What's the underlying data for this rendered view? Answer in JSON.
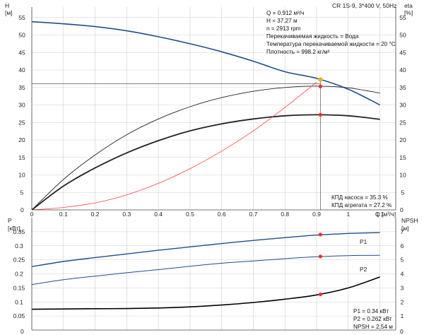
{
  "colors": {
    "head": "#1f4e8c",
    "efficiency": "#222222",
    "operating_point": "#ff2a2a",
    "duty_point": "#ffaa22",
    "npsh": "#000000",
    "system": "#ff4444",
    "grid": "#cfcfcf"
  },
  "top_chart": {
    "title": "CR 1S-9, 3*400 V, 50Hz",
    "left_axis": {
      "label": "H",
      "unit": "[м]",
      "ticks": [
        "5",
        "10",
        "15",
        "20",
        "25",
        "30",
        "35",
        "40",
        "45",
        "50",
        "55"
      ]
    },
    "right_axis": {
      "label": "eta",
      "unit": "[%]",
      "ticks": [
        "5",
        "10",
        "15",
        "20",
        "25",
        "30",
        "35",
        "40",
        "45",
        "50",
        "55"
      ]
    },
    "x_axis": {
      "label": "Q",
      "unit": "[м³/ч]",
      "ticks": [
        "0",
        "0.1",
        "0.2",
        "0.3",
        "0.4",
        "0.5",
        "0.6",
        "0.7",
        "0.8",
        "0.9",
        "1",
        "1.1"
      ]
    },
    "zero_labels": [
      "0",
      "0"
    ],
    "info": [
      "Q = 0.912 м³/ч",
      "H = 37.27 м",
      "n = 2913 rpm",
      "Перекачиваемая жидкость = Вода",
      "Температура перекачиваемой жидкости = 20 °C",
      "Плотность = 998.2 кг/м³"
    ],
    "efficiency_labels": [
      "КПД насоса = 35.3 %",
      "КПД агрегата = 27.2 %"
    ]
  },
  "bottom_chart": {
    "left_axis": {
      "label": "P",
      "unit": "[кВт]",
      "ticks": [
        "0.05",
        "0.1",
        "0.15",
        "0.2",
        "0.25",
        "0.3",
        "0.35"
      ]
    },
    "right_axis": {
      "label": "NPSH",
      "unit": "[м]",
      "ticks": [
        "1",
        "2",
        "3",
        "4",
        "5",
        "6",
        "7"
      ]
    },
    "zero_labels": [
      "0",
      "0"
    ],
    "series_labels": [
      "P1",
      "P2"
    ],
    "info": [
      "P1 = 0.34 кВт",
      "P2 = 0.262 кВт",
      "NPSH = 2.54 м"
    ]
  },
  "chart_data": [
    {
      "type": "line",
      "title": "CR 1S-9, 3*400 V, 50Hz",
      "xlabel": "Q [м³/ч]",
      "ylabel": "H [м]",
      "y2label": "eta [%]",
      "xlim": [
        0,
        1.15
      ],
      "ylim": [
        0,
        60
      ],
      "grid": true,
      "series": [
        {
          "name": "H",
          "x": [
            0,
            0.1,
            0.2,
            0.3,
            0.4,
            0.5,
            0.6,
            0.7,
            0.8,
            0.9,
            1.0,
            1.1
          ],
          "y": [
            53.8,
            53.2,
            52.4,
            51.2,
            49.5,
            47.5,
            45.2,
            42.5,
            39.5,
            37.6,
            34.5,
            30.0
          ]
        },
        {
          "name": "КПД насоса",
          "x": [
            0,
            0.1,
            0.2,
            0.3,
            0.4,
            0.5,
            0.6,
            0.7,
            0.8,
            0.9,
            1.0,
            1.1
          ],
          "y": [
            0,
            8.7,
            15.7,
            21.5,
            26.0,
            29.5,
            32.1,
            33.9,
            35.0,
            35.4,
            34.9,
            33.4
          ]
        },
        {
          "name": "КПД агрегата",
          "x": [
            0,
            0.1,
            0.2,
            0.3,
            0.4,
            0.5,
            0.6,
            0.7,
            0.8,
            0.9,
            1.0,
            1.1
          ],
          "y": [
            0,
            6.8,
            12.0,
            16.3,
            19.8,
            22.6,
            24.6,
            26.0,
            26.9,
            27.2,
            26.9,
            25.9
          ]
        },
        {
          "name": "system",
          "x": [
            0,
            0.1,
            0.2,
            0.3,
            0.4,
            0.5,
            0.6,
            0.7,
            0.8,
            0.9
          ],
          "y": [
            0,
            0.7,
            2.0,
            4.3,
            7.6,
            11.8,
            16.8,
            22.6,
            29.3,
            36.5
          ]
        }
      ],
      "points": [
        {
          "x": 0.912,
          "y": 37.27,
          "series": "H"
        },
        {
          "x": 0.912,
          "y": 35.3,
          "series": "КПД насоса"
        },
        {
          "x": 0.912,
          "y": 27.2,
          "series": "КПД агрегата"
        }
      ]
    },
    {
      "type": "line",
      "xlabel": "Q [м³/ч]",
      "ylabel": "P [кВт]",
      "y2label": "NPSH [м]",
      "xlim": [
        0,
        1.15
      ],
      "ylim": [
        0,
        0.4
      ],
      "y2lim": [
        0,
        8
      ],
      "grid": true,
      "series": [
        {
          "name": "P1",
          "x": [
            0,
            0.1,
            0.2,
            0.3,
            0.4,
            0.5,
            0.6,
            0.7,
            0.8,
            0.9,
            1.0,
            1.1
          ],
          "y": [
            0.226,
            0.244,
            0.258,
            0.271,
            0.284,
            0.296,
            0.308,
            0.319,
            0.329,
            0.338,
            0.344,
            0.347
          ]
        },
        {
          "name": "P2",
          "x": [
            0,
            0.1,
            0.2,
            0.3,
            0.4,
            0.5,
            0.6,
            0.7,
            0.8,
            0.9,
            1.0,
            1.1
          ],
          "y": [
            0.162,
            0.179,
            0.192,
            0.204,
            0.215,
            0.227,
            0.238,
            0.246,
            0.254,
            0.261,
            0.265,
            0.266
          ]
        },
        {
          "name": "NPSH",
          "axis": "right",
          "x": [
            0,
            0.1,
            0.2,
            0.3,
            0.4,
            0.5,
            0.6,
            0.7,
            0.8,
            0.9,
            1.0,
            1.1
          ],
          "y": [
            1.48,
            1.5,
            1.52,
            1.53,
            1.57,
            1.65,
            1.78,
            1.96,
            2.2,
            2.5,
            3.0,
            3.78
          ]
        }
      ],
      "points": [
        {
          "x": 0.912,
          "y": 0.34,
          "series": "P1"
        },
        {
          "x": 0.912,
          "y": 0.262,
          "series": "P2"
        },
        {
          "x": 0.912,
          "y": 2.54,
          "series": "NPSH"
        }
      ]
    }
  ]
}
